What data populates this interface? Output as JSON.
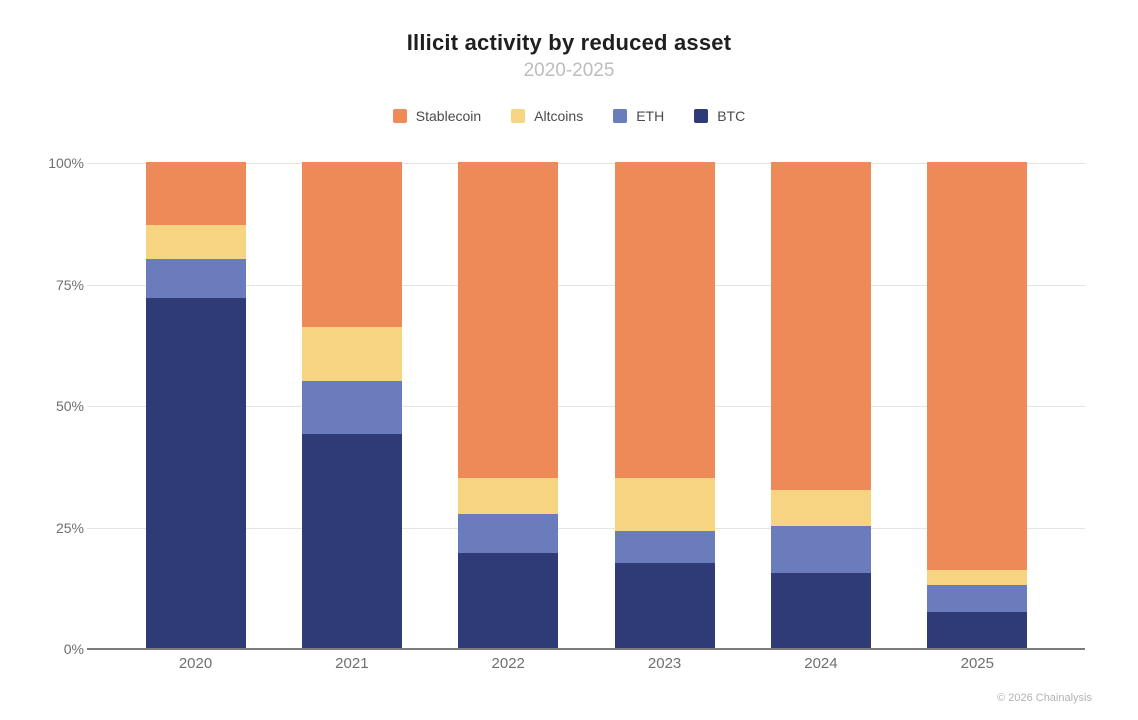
{
  "title": "Illicit activity by reduced asset",
  "subtitle": "2020-2025",
  "footer": "© 2026 Chainalysis",
  "colors": {
    "background": "#FFFFFF",
    "stablecoin": "#EE8A57",
    "altcoins": "#F6D482",
    "eth": "#6A7CBB",
    "btc": "#2E3B76",
    "gridline": "#E4E4E4",
    "axis_line": "#7B7B7B",
    "title_text": "#1F1F1F",
    "subtitle_text": "#BDBDBD",
    "legend_text": "#4B4B4B",
    "axis_text": "#6F6F6F",
    "footer_text": "#B3B3B3"
  },
  "y_axis": {
    "tick_labels": [
      "100%",
      "75%",
      "50%",
      "25%",
      "0%"
    ]
  },
  "chart_data": {
    "type": "bar",
    "stacked": true,
    "title": "Illicit activity by reduced asset",
    "subtitle": "2020-2025",
    "categories": [
      "2020",
      "2021",
      "2022",
      "2023",
      "2024",
      "2025"
    ],
    "unit": "percent",
    "ylim": [
      0,
      100
    ],
    "y_ticks": [
      "0%",
      "25%",
      "50%",
      "75%",
      "100%"
    ],
    "grid": true,
    "legend_position": "top",
    "legend_order": [
      "Stablecoin",
      "Altcoins",
      "ETH",
      "BTC"
    ],
    "series": [
      {
        "key": "stablecoin",
        "name": "Stablecoin",
        "color": "#EE8A57",
        "values": [
          13,
          34,
          65,
          65,
          67.5,
          84
        ]
      },
      {
        "key": "altcoins",
        "name": "Altcoins",
        "color": "#F6D482",
        "values": [
          7,
          11,
          7.5,
          11,
          7.5,
          3
        ]
      },
      {
        "key": "eth",
        "name": "ETH",
        "color": "#6A7CBB",
        "values": [
          8,
          11,
          8,
          6.5,
          9.5,
          5.5
        ]
      },
      {
        "key": "btc",
        "name": "BTC",
        "color": "#2E3B76",
        "values": [
          72,
          44,
          19.5,
          17.5,
          15.5,
          7.5
        ]
      }
    ],
    "annotation": "© 2026 Chainalysis"
  }
}
